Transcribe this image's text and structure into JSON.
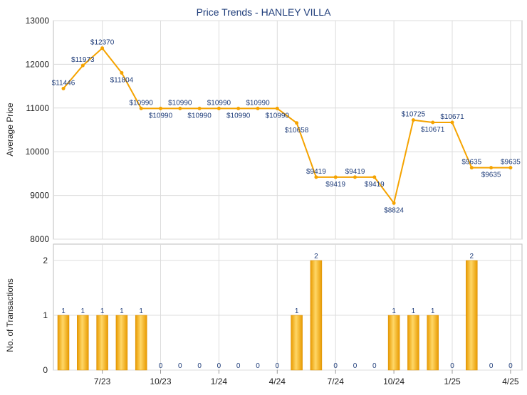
{
  "title": "Price Trends - HANLEY VILLA",
  "chart_data": [
    {
      "type": "line",
      "title": "Price Trends - HANLEY VILLA",
      "xlabel": "",
      "ylabel": "Average Price",
      "ylim": [
        8000,
        13000
      ],
      "yticks": [
        8000,
        9000,
        10000,
        11000,
        12000,
        13000
      ],
      "grid": true,
      "color": "#f5a300",
      "x": [
        "5/23",
        "6/23",
        "7/23",
        "8/23",
        "9/23",
        "10/23",
        "11/23",
        "12/23",
        "1/24",
        "2/24",
        "3/24",
        "4/24",
        "5/24",
        "6/24",
        "7/24",
        "8/24",
        "9/24",
        "10/24",
        "11/24",
        "12/24",
        "1/25",
        "2/25",
        "3/25",
        "4/25"
      ],
      "values": [
        11446,
        11973,
        12370,
        11804,
        10990,
        10990,
        10990,
        10990,
        10990,
        10990,
        10990,
        10990,
        10658,
        9419,
        9419,
        9419,
        9419,
        8824,
        10725,
        10671,
        10671,
        9635,
        9635,
        9635
      ],
      "labels": [
        "$11446",
        "$11973",
        "$12370",
        "$11804",
        "$10990",
        "$10990",
        "$10990",
        "$10990",
        "$10990",
        "$10990",
        "$10990",
        "$10990",
        "$10658",
        "$9419",
        "$9419",
        "$9419",
        "$9419",
        "$8824",
        "$10725",
        "$10671",
        "$10671",
        "$9635",
        "$9635",
        "$9635"
      ],
      "label_position": [
        "above",
        "above",
        "above",
        "below",
        "above",
        "below",
        "above",
        "below",
        "above",
        "below",
        "above",
        "below",
        "below",
        "above",
        "below",
        "above",
        "below",
        "below",
        "above",
        "below",
        "above",
        "above",
        "below",
        "above"
      ]
    },
    {
      "type": "bar",
      "ylabel": "No. of Transactions",
      "xlabel": "",
      "ylim": [
        0,
        2
      ],
      "yticks": [
        0,
        1,
        2
      ],
      "grid": true,
      "color": "#f5a300",
      "values": [
        1,
        1,
        1,
        1,
        1,
        0,
        0,
        0,
        0,
        0,
        0,
        0,
        1,
        2,
        0,
        0,
        0,
        1,
        1,
        1,
        0,
        2,
        0,
        0
      ],
      "value_labels": [
        "1",
        "1",
        "1",
        "1",
        "1",
        "0",
        "0",
        "0",
        "0",
        "0",
        "0",
        "0",
        "1",
        "2",
        "0",
        "0",
        "0",
        "1",
        "1",
        "1",
        "0",
        "2",
        "0",
        "0"
      ],
      "xtick_labels": [
        "7/23",
        "10/23",
        "1/24",
        "4/24",
        "7/24",
        "10/24",
        "1/25",
        "4/25"
      ],
      "xtick_index": [
        2,
        5,
        8,
        11,
        14,
        17,
        20,
        23
      ]
    }
  ]
}
